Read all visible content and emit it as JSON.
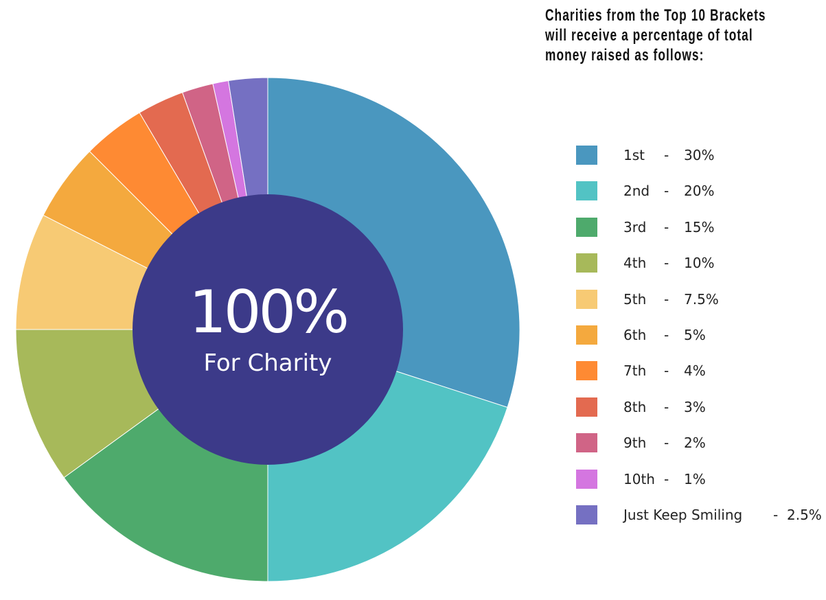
{
  "chart_data": {
    "type": "pie",
    "donut": true,
    "start": "top",
    "direction": "clockwise",
    "title_lines": [
      "Charities from the Top 10 Brackets",
      "will receive a percentage of total",
      "money raised as follows:"
    ],
    "center": {
      "big": "100%",
      "small": "For Charity",
      "color": "#3C3A89"
    },
    "slices": [
      {
        "label": "1st",
        "value": 30,
        "value_text": "30%",
        "color": "#4A97BF"
      },
      {
        "label": "2nd",
        "value": 20,
        "value_text": "20%",
        "color": "#52C3C4"
      },
      {
        "label": "3rd",
        "value": 15,
        "value_text": "15%",
        "color": "#4EAA6C"
      },
      {
        "label": "4th",
        "value": 10,
        "value_text": "10%",
        "color": "#A7B95A"
      },
      {
        "label": "5th",
        "value": 7.5,
        "value_text": "7.5%",
        "color": "#F7CA74"
      },
      {
        "label": "6th",
        "value": 5,
        "value_text": "5%",
        "color": "#F4A93E"
      },
      {
        "label": "7th",
        "value": 4,
        "value_text": "4%",
        "color": "#FE8A33"
      },
      {
        "label": "8th",
        "value": 3,
        "value_text": "3%",
        "color": "#E36A50"
      },
      {
        "label": "9th",
        "value": 2,
        "value_text": "2%",
        "color": "#D06486"
      },
      {
        "label": "10th",
        "value": 1,
        "value_text": "1%",
        "color": "#D476E0"
      },
      {
        "label": "Just Keep Smiling",
        "value": 2.5,
        "value_text": "2.5%",
        "color": "#7570C2"
      }
    ],
    "legend_placement": "right",
    "dash": "-"
  }
}
